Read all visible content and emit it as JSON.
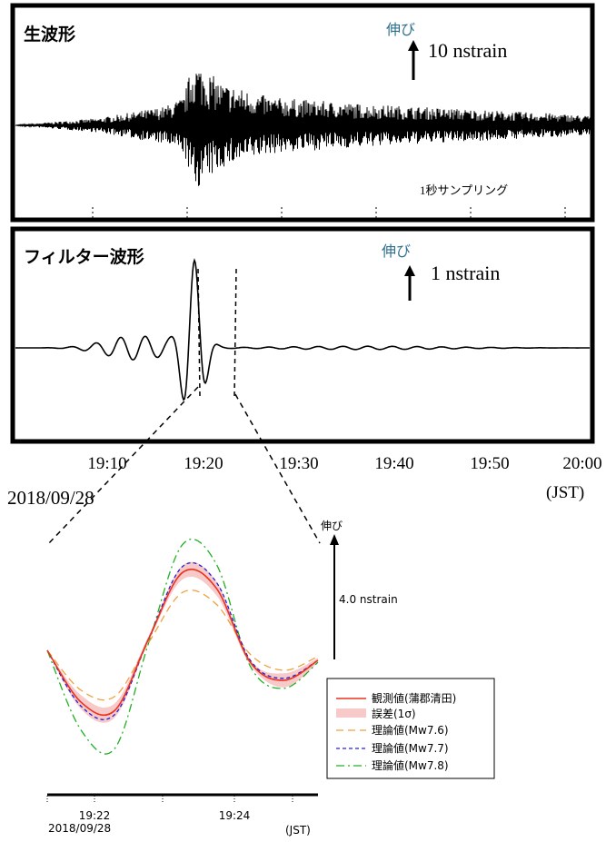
{
  "panels": {
    "raw": {
      "title": "生波形",
      "direction_label": "伸び",
      "scale_label": "10 nstrain",
      "note": "1秒サンプリング"
    },
    "filtered": {
      "title": "フィルター波形",
      "direction_label": "伸び",
      "scale_label": "1 nstrain"
    }
  },
  "top_axis": {
    "ticks": [
      "19:10",
      "19:20",
      "19:30",
      "19:40",
      "19:50",
      "20:00"
    ],
    "date": "2018/09/28",
    "unit": "(JST)"
  },
  "detail": {
    "direction_label": "伸び",
    "scale_label": "4.0 nstrain",
    "ticks": [
      "19:22",
      "19:24"
    ],
    "date": "2018/09/28",
    "unit": "(JST)",
    "legend": [
      "観測値(蒲郡清田)",
      "誤差(1σ)",
      "理論値(Mw7.6)",
      "理論値(Mw7.7)",
      "理論値(Mw7.8)"
    ]
  },
  "colors": {
    "observed": "#e8321e",
    "error_band": "#f7c9c9",
    "mw76": "#f0a040",
    "mw77": "#2020e0",
    "mw78": "#20b020",
    "scale_label_teal": "#2e6f8e"
  },
  "chart_data": [
    {
      "type": "line",
      "panel": "raw",
      "title": "生波形",
      "xlabel": "(JST)",
      "x_ticks": [
        "19:10",
        "19:20",
        "19:30",
        "19:40",
        "19:50",
        "20:00"
      ],
      "xlim": [
        "19:03",
        "20:04"
      ],
      "x": [
        "19:03",
        "19:12",
        "19:19",
        "19:20",
        "19:21",
        "19:22",
        "19:25",
        "19:30",
        "19:40",
        "19:50",
        "20:00",
        "20:04"
      ],
      "series": [
        {
          "values": [
            0,
            1.5,
            4,
            5,
            6,
            14,
            9,
            6,
            4.5,
            3.5,
            2.5,
            2
          ]
        }
      ],
      "ylabel": "伸び 10 nstrain"
    },
    {
      "type": "line",
      "panel": "filtered",
      "title": "フィルター波形",
      "xlabel": "(JST)",
      "x_ticks": [
        "19:10",
        "19:20",
        "19:30",
        "19:40",
        "19:50",
        "20:00"
      ],
      "xlim": [
        "19:03",
        "20:04"
      ],
      "x": [
        "19:03",
        "19:12",
        "19:15",
        "19:18",
        "19:20",
        "19:21",
        "19:22",
        "19:23",
        "19:24",
        "19:25",
        "19:30",
        "20:04"
      ],
      "series": [
        {
          "values": [
            0,
            0.1,
            0.2,
            0.3,
            0.5,
            -1.6,
            1.6,
            -0.9,
            0.3,
            0.05,
            0,
            0
          ]
        }
      ],
      "ylabel": "伸び 1 nstrain"
    },
    {
      "type": "line",
      "panel": "detail",
      "xlabel": "(JST)",
      "x_ticks": [
        "19:22",
        "19:24"
      ],
      "x": [
        "19:21.0",
        "19:21.5",
        "19:22.0",
        "19:22.5",
        "19:23.0",
        "19:23.5",
        "19:24.0",
        "19:24.5",
        "19:25.0"
      ],
      "series": [
        {
          "name": "観測値(蒲郡清田)",
          "values": [
            0.0,
            -2.6,
            -3.0,
            0.6,
            3.9,
            3.1,
            -0.6,
            -1.5,
            -0.5
          ]
        },
        {
          "name": "理論値(Mw7.6)",
          "values": [
            0.0,
            -2.0,
            -2.3,
            0.4,
            2.9,
            2.3,
            -0.2,
            -1.0,
            -0.3
          ]
        },
        {
          "name": "理論値(Mw7.7)",
          "values": [
            0.0,
            -2.8,
            -3.2,
            0.6,
            4.2,
            3.4,
            -0.5,
            -1.4,
            -0.5
          ]
        },
        {
          "name": "理論値(Mw7.8)",
          "values": [
            0.0,
            -4.0,
            -4.9,
            0.4,
            5.3,
            4.3,
            -0.8,
            -1.9,
            -0.6
          ]
        }
      ],
      "error_band": {
        "name": "誤差(1σ)",
        "half_width": 0.35
      },
      "ylabel": "伸び 4.0 nstrain"
    }
  ]
}
